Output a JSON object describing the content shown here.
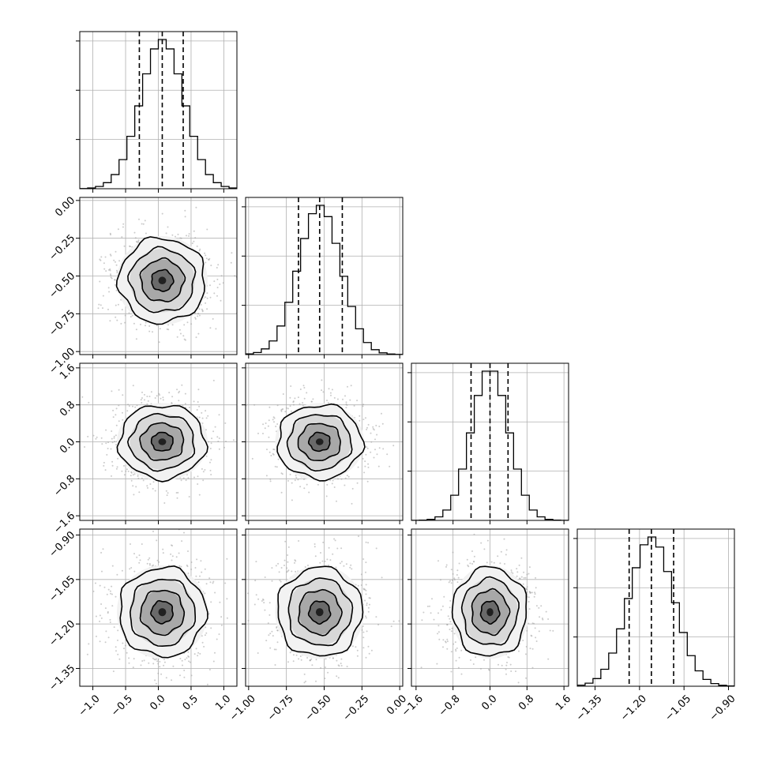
{
  "chart_data": {
    "type": "corner",
    "n_params": 4,
    "grid": true,
    "params": [
      {
        "range": [
          -1.2,
          1.2
        ],
        "ticks": [
          -1.0,
          -0.5,
          0.0,
          0.5,
          1.0
        ],
        "tick_labels": [
          "−1.0",
          "−0.5",
          "0.0",
          "0.5",
          "1.0"
        ],
        "quantiles": [
          -0.29,
          0.06,
          0.38
        ],
        "mean": 0.06,
        "sd": 0.33
      },
      {
        "range": [
          -1.02,
          0.02
        ],
        "ticks": [
          -1.0,
          -0.75,
          -0.5,
          -0.25,
          0.0
        ],
        "tick_labels": [
          "−1.00",
          "−0.75",
          "−0.50",
          "−0.25",
          "0.00"
        ],
        "quantiles": [
          -0.67,
          -0.53,
          -0.38
        ],
        "mean": -0.53,
        "sd": 0.14
      },
      {
        "range": [
          -1.7,
          1.7
        ],
        "ticks": [
          -1.6,
          -0.8,
          0.0,
          0.8,
          1.6
        ],
        "tick_labels": [
          "−1.6",
          "−0.8",
          "0.0",
          "0.8",
          "1.6"
        ],
        "quantiles": [
          -0.41,
          0.0,
          0.39
        ],
        "mean": 0.0,
        "sd": 0.4
      },
      {
        "range": [
          -1.41,
          -0.88
        ],
        "ticks": [
          -1.35,
          -1.2,
          -1.05,
          -0.9
        ],
        "tick_labels": [
          "−1.35",
          "−1.20",
          "−1.05",
          "−0.90"
        ],
        "quantiles": [
          -1.235,
          -1.16,
          -1.085
        ],
        "mean": -1.16,
        "sd": 0.075
      }
    ],
    "hist_bins": 20,
    "contour_levels_sigma": [
      0.5,
      1.0,
      1.5,
      2.0
    ],
    "scatter_points_per_panel": 900
  }
}
